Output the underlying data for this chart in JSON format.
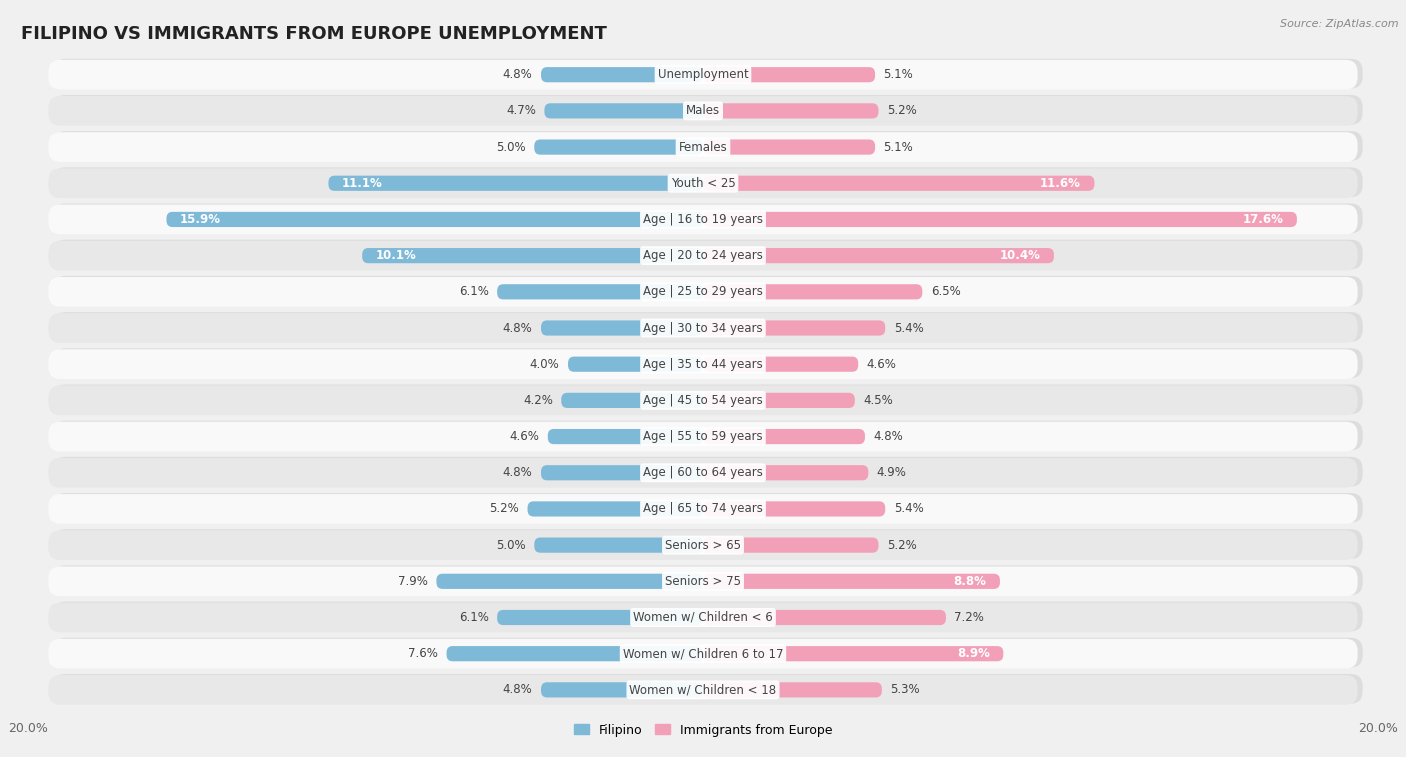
{
  "title": "FILIPINO VS IMMIGRANTS FROM EUROPE UNEMPLOYMENT",
  "source": "Source: ZipAtlas.com",
  "categories": [
    "Unemployment",
    "Males",
    "Females",
    "Youth < 25",
    "Age | 16 to 19 years",
    "Age | 20 to 24 years",
    "Age | 25 to 29 years",
    "Age | 30 to 34 years",
    "Age | 35 to 44 years",
    "Age | 45 to 54 years",
    "Age | 55 to 59 years",
    "Age | 60 to 64 years",
    "Age | 65 to 74 years",
    "Seniors > 65",
    "Seniors > 75",
    "Women w/ Children < 6",
    "Women w/ Children 6 to 17",
    "Women w/ Children < 18"
  ],
  "filipino": [
    4.8,
    4.7,
    5.0,
    11.1,
    15.9,
    10.1,
    6.1,
    4.8,
    4.0,
    4.2,
    4.6,
    4.8,
    5.2,
    5.0,
    7.9,
    6.1,
    7.6,
    4.8
  ],
  "europe": [
    5.1,
    5.2,
    5.1,
    11.6,
    17.6,
    10.4,
    6.5,
    5.4,
    4.6,
    4.5,
    4.8,
    4.9,
    5.4,
    5.2,
    8.8,
    7.2,
    8.9,
    5.3
  ],
  "filipino_color": "#7fb9d8",
  "europe_color": "#f2a0b8",
  "xlim": 20.0,
  "bg_color": "#f0f0f0",
  "row_color_even": "#f9f9f9",
  "row_color_odd": "#e8e8e8",
  "title_fontsize": 13,
  "label_fontsize": 8.5,
  "tick_fontsize": 9,
  "legend_fontsize": 9,
  "value_fontsize": 8.5
}
